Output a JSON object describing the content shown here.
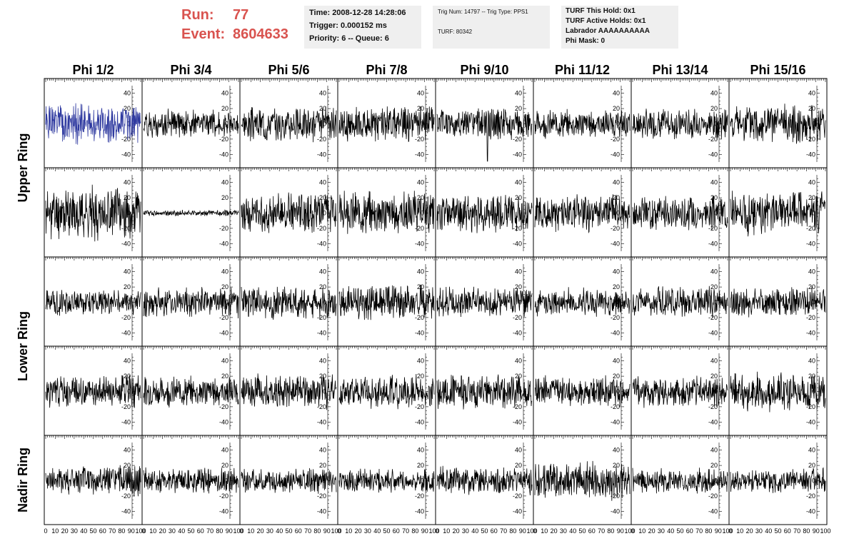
{
  "header": {
    "run_label": "Run:",
    "run_value": "77",
    "event_label": "Event:",
    "event_value": "8604633",
    "accent_color": "#d9534f"
  },
  "info_boxes": {
    "time": {
      "line1": "Time: 2008-12-28 14:28:06",
      "line2": "Trigger: 0.000152 ms",
      "line3": "Priority: 6 -- Queue: 6"
    },
    "trig": {
      "line1": "Trig Num: 14797 -- Trig Type: PPS1",
      "line2": "TURF: 80342"
    },
    "turf": {
      "line1": "TURF This Hold: 0x1",
      "line2": "TURF Active Holds: 0x1",
      "line3": "Labrador AAAAAAAAAA",
      "line4": "Phi Mask: 0"
    }
  },
  "chart_data": {
    "type": "line",
    "layout": "grid",
    "columns": [
      "Phi 1/2",
      "Phi 3/4",
      "Phi 5/6",
      "Phi 7/8",
      "Phi 9/10",
      "Phi 11/12",
      "Phi 13/14",
      "Phi 15/16"
    ],
    "row_groups": [
      "Upper Ring",
      "Lower Ring",
      "Nadir Ring"
    ],
    "rows": 5,
    "xlim": [
      0,
      100
    ],
    "ylim": [
      -50,
      50
    ],
    "x_ticks": [
      0,
      10,
      20,
      30,
      40,
      50,
      60,
      70,
      80,
      90,
      100
    ],
    "y_ticks": [
      -40,
      -20,
      0,
      20,
      40
    ],
    "highlight_color": "#2f3aa0",
    "trace_color": "#000000",
    "highlight_panel": {
      "row": 0,
      "col": 0
    },
    "panels": [
      [
        {
          "amp": 20,
          "seed": 1
        },
        {
          "amp": 14,
          "seed": 2
        },
        {
          "amp": 17,
          "seed": 3
        },
        {
          "amp": 18,
          "seed": 4
        },
        {
          "amp": 16,
          "seed": 5,
          "spike": {
            "x": 53,
            "y": -49
          }
        },
        {
          "amp": 14,
          "seed": 6
        },
        {
          "amp": 15,
          "seed": 7
        },
        {
          "amp": 19,
          "seed": 8
        }
      ],
      [
        {
          "amp": 26,
          "seed": 11
        },
        {
          "amp": 3,
          "seed": 12
        },
        {
          "amp": 20,
          "seed": 13
        },
        {
          "amp": 21,
          "seed": 14
        },
        {
          "amp": 19,
          "seed": 15
        },
        {
          "amp": 18,
          "seed": 16
        },
        {
          "amp": 17,
          "seed": 17
        },
        {
          "amp": 22,
          "seed": 18
        }
      ],
      [
        {
          "amp": 13,
          "seed": 21
        },
        {
          "amp": 15,
          "seed": 22
        },
        {
          "amp": 17,
          "seed": 23
        },
        {
          "amp": 17,
          "seed": 24
        },
        {
          "amp": 15,
          "seed": 25
        },
        {
          "amp": 14,
          "seed": 26
        },
        {
          "amp": 15,
          "seed": 27
        },
        {
          "amp": 15,
          "seed": 28
        }
      ],
      [
        {
          "amp": 16,
          "seed": 31
        },
        {
          "amp": 15,
          "seed": 32
        },
        {
          "amp": 17,
          "seed": 33
        },
        {
          "amp": 17,
          "seed": 34
        },
        {
          "amp": 17,
          "seed": 35
        },
        {
          "amp": 15,
          "seed": 36
        },
        {
          "amp": 16,
          "seed": 37
        },
        {
          "amp": 19,
          "seed": 38
        }
      ],
      [
        {
          "amp": 15,
          "seed": 41
        },
        {
          "amp": 13,
          "seed": 42
        },
        {
          "amp": 12,
          "seed": 43
        },
        {
          "amp": 12,
          "seed": 44
        },
        {
          "amp": 14,
          "seed": 45
        },
        {
          "amp": 19,
          "seed": 46
        },
        {
          "amp": 12,
          "seed": 47
        },
        {
          "amp": 13,
          "seed": 48
        }
      ]
    ]
  }
}
